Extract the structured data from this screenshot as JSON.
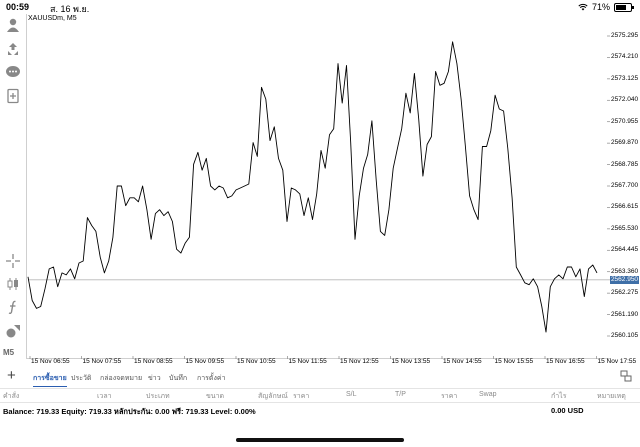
{
  "status_bar": {
    "time": "00:59",
    "date": "ส. 16 พ.ย.",
    "battery": "71%",
    "battery_level": 0.71
  },
  "left_toolbar": {
    "icons": [
      "trader-icon",
      "buy-sell-icon",
      "chat-icon",
      "new-order-icon",
      "crosshair-icon",
      "candles-icon",
      "function-icon",
      "objects-icon"
    ],
    "timeframe": "M5"
  },
  "chart": {
    "symbol": "XAUUSDm, M5",
    "current_price": "2562.950",
    "price_labels": [
      "2575.295",
      "2574.210",
      "2573.125",
      "2572.040",
      "2570.955",
      "2569.870",
      "2568.785",
      "2567.700",
      "2566.615",
      "2565.530",
      "2564.445",
      "2563.360",
      "2562.275",
      "2561.190",
      "2560.105"
    ],
    "time_labels": [
      "15 Nov 06:55",
      "15 Nov 07:55",
      "15 Nov 08:55",
      "15 Nov 09:55",
      "15 Nov 10:55",
      "15 Nov 11:55",
      "15 Nov 12:55",
      "15 Nov 13:55",
      "15 Nov 14:55",
      "15 Nov 15:55",
      "15 Nov 16:55",
      "15 Nov 17:55"
    ]
  },
  "chart_data": {
    "type": "line",
    "title": "XAUUSDm, M5",
    "ylim": [
      2559.6,
      2576.0
    ],
    "x_label_start": "15 Nov 06:55",
    "values": [
      2563.1,
      2561.9,
      2561.5,
      2561.6,
      2562.5,
      2563.5,
      2563.6,
      2562.6,
      2563.3,
      2563.2,
      2563.5,
      2563.0,
      2563.8,
      2563.9,
      2566.1,
      2565.7,
      2565.4,
      2564.1,
      2563.3,
      2563.9,
      2565.1,
      2567.7,
      2567.7,
      2566.7,
      2567.1,
      2567.1,
      2566.9,
      2567.7,
      2566.5,
      2565.0,
      2566.3,
      2566.5,
      2566.2,
      2566.4,
      2565.9,
      2564.5,
      2564.3,
      2564.8,
      2565.1,
      2568.8,
      2569.4,
      2568.5,
      2569.1,
      2567.7,
      2567.5,
      2567.7,
      2567.6,
      2567.1,
      2567.2,
      2567.5,
      2567.6,
      2567.7,
      2567.8,
      2569.9,
      2569.2,
      2572.7,
      2572.1,
      2570.0,
      2570.7,
      2569.1,
      2568.5,
      2565.9,
      2567.6,
      2567.5,
      2567.3,
      2566.2,
      2567.1,
      2566.0,
      2567.3,
      2569.5,
      2568.6,
      2570.3,
      2570.6,
      2573.9,
      2571.9,
      2573.8,
      2569.9,
      2565.0,
      2567.2,
      2568.6,
      2569.3,
      2571.0,
      2568.0,
      2565.4,
      2565.2,
      2566.5,
      2568.6,
      2569.6,
      2570.6,
      2572.4,
      2571.4,
      2573.4,
      2571.1,
      2568.2,
      2569.8,
      2570.2,
      2573.5,
      2572.8,
      2572.9,
      2573.5,
      2575.0,
      2573.9,
      2572.1,
      2569.7,
      2567.2,
      2566.5,
      2566.0,
      2569.7,
      2569.7,
      2570.5,
      2572.3,
      2571.6,
      2571.5,
      2569.6,
      2567.1,
      2563.6,
      2563.2,
      2562.8,
      2562.7,
      2563.0,
      2562.6,
      2561.6,
      2560.3,
      2562.6,
      2563.0,
      2563.2,
      2563.0,
      2563.6,
      2563.6,
      2563.1,
      2563.5,
      2562.1,
      2563.5,
      2563.7,
      2563.3
    ]
  },
  "tabs": {
    "items": [
      "การซื้อขาย",
      "ประวัติ",
      "กล่องจดหมาย",
      "ข่าว",
      "บันทึก",
      "การตั้งค่า"
    ],
    "active": "การซื้อขาย"
  },
  "table_header": [
    "คำสั่ง",
    "เวลา",
    "ประเภท",
    "ขนาด",
    "สัญลักษณ์",
    "ราคา",
    "S/L",
    "T/P",
    "ราคา",
    "Swap",
    "กำไร",
    "หมายเหตุ"
  ],
  "account": {
    "summary": "Balance: 719.33 Equity: 719.33 หลักประกัน: 0.00 ฟรี: 719.33 Level: 0.00%",
    "profit": "0.00  USD"
  },
  "colors": {
    "accent": "#2a5db0",
    "price_tag": "#3f6fa7",
    "line": "#000000",
    "grid": "#cfcfcf"
  }
}
